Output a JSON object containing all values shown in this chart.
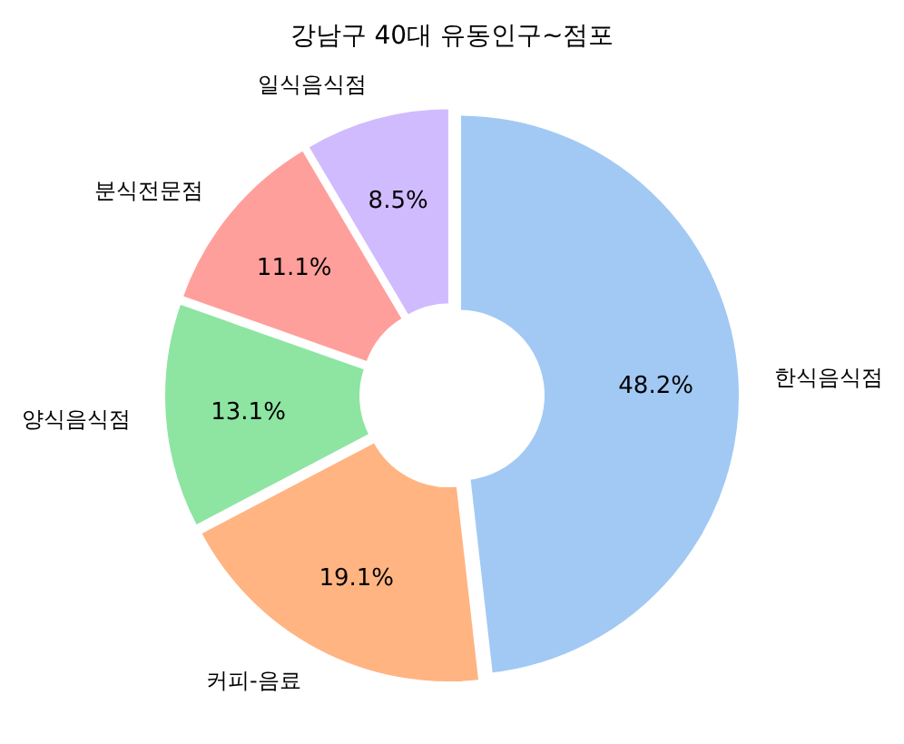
{
  "chart_data": {
    "type": "donut",
    "title": "강남구 40대 유동인구~점포",
    "categories": [
      "한식음식점",
      "커피-음료",
      "양식음식점",
      "분식전문점",
      "일식음식점"
    ],
    "values": [
      48.2,
      19.1,
      13.1,
      11.1,
      8.5
    ],
    "value_labels": [
      "48.2%",
      "19.1%",
      "13.1%",
      "11.1%",
      "8.5%"
    ],
    "colors": [
      "#a1c9f4",
      "#ffb482",
      "#8de5a1",
      "#ff9f9b",
      "#d0bbff"
    ]
  }
}
